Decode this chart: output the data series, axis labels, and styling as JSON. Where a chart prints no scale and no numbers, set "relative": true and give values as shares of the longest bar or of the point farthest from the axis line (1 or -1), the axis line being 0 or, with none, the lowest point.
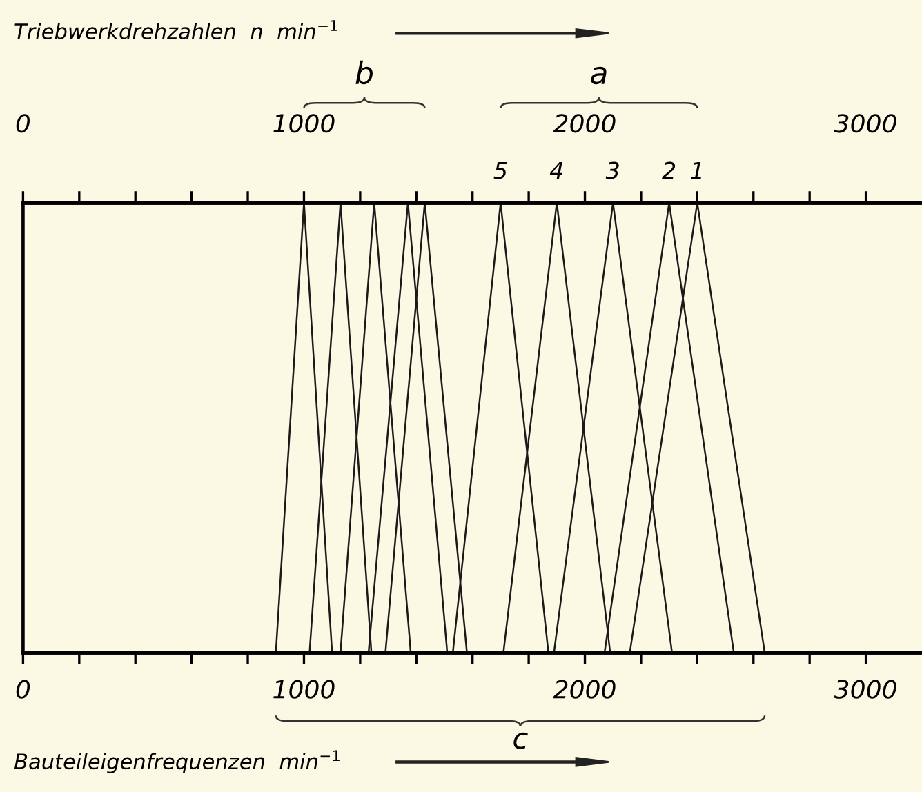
{
  "chart_data": {
    "type": "line",
    "relative": true,
    "xlabel": "Bauteileigenfrequenzen  min$^{−1}$",
    "x2label": "Triebwerkdrehzahlen  n  min$^{−1}$",
    "xlim": [
      0,
      3200
    ],
    "xticks": [
      0,
      {
        "value": 200,
        "label": null
      },
      {
        "value": 400,
        "label": null
      },
      {
        "value": 600,
        "label": null
      },
      {
        "value": 800,
        "label": null
      },
      1000,
      {
        "value": 1200,
        "label": null
      },
      {
        "value": 1400,
        "label": null
      },
      {
        "value": 1600,
        "label": null
      },
      {
        "value": 1800,
        "label": null
      },
      2000,
      {
        "value": 2200,
        "label": null
      },
      {
        "value": 2400,
        "label": null
      },
      {
        "value": 2600,
        "label": null
      },
      {
        "value": 2800,
        "label": null
      },
      3000
    ],
    "x2lim": [
      0,
      3200
    ],
    "x2ticks": [
      0,
      {
        "value": 200,
        "label": null
      },
      {
        "value": 400,
        "label": null
      },
      {
        "value": 600,
        "label": null
      },
      {
        "value": 800,
        "label": null
      },
      1000,
      {
        "value": 1200,
        "label": null
      },
      {
        "value": 1400,
        "label": null
      },
      {
        "value": 1600,
        "label": null
      },
      {
        "value": 1800,
        "label": null
      },
      2000,
      {
        "value": 2200,
        "label": null
      },
      {
        "value": 2400,
        "label": null
      },
      {
        "value": 2600,
        "label": null
      },
      {
        "value": 2800,
        "label": null
      },
      3000
    ],
    "grid": false,
    "legend": false,
    "marker": "none",
    "line_style": "solid",
    "series": [
      {
        "color": "#1a1a1a",
        "x": [
          900,
          1000,
          1100
        ],
        "values": [
          0,
          1,
          0
        ]
      },
      {
        "color": "#1a1a1a",
        "x": [
          1020,
          1130,
          1240
        ],
        "values": [
          0,
          1,
          0
        ]
      },
      {
        "color": "#1a1a1a",
        "x": [
          1130,
          1250,
          1380
        ],
        "values": [
          0,
          1,
          0
        ]
      },
      {
        "color": "#1a1a1a",
        "x": [
          1230,
          1370,
          1510
        ],
        "values": [
          0,
          1,
          0
        ]
      },
      {
        "color": "#1a1a1a",
        "x": [
          1290,
          1430,
          1580
        ],
        "values": [
          0,
          1,
          0
        ]
      },
      {
        "color": "#1a1a1a",
        "x": [
          1530,
          1700,
          1870
        ],
        "values": [
          0,
          1,
          0
        ]
      },
      {
        "color": "#1a1a1a",
        "x": [
          1710,
          1900,
          2090
        ],
        "values": [
          0,
          1,
          0
        ]
      },
      {
        "color": "#1a1a1a",
        "x": [
          1890,
          2100,
          2310
        ],
        "values": [
          0,
          1,
          0
        ]
      },
      {
        "color": "#1a1a1a",
        "x": [
          2070,
          2300,
          2530
        ],
        "values": [
          0,
          1,
          0
        ]
      },
      {
        "color": "#1a1a1a",
        "x": [
          2160,
          2400,
          2640
        ],
        "values": [
          0,
          1,
          0
        ]
      }
    ],
    "annotations": [
      {
        "text": "5",
        "x": 1700,
        "y": 1
      },
      {
        "text": "4",
        "x": 1900,
        "y": 1
      },
      {
        "text": "3",
        "x": 2100,
        "y": 1
      },
      {
        "text": "2",
        "x": 2300,
        "y": 1
      },
      {
        "text": "1",
        "x": 2400,
        "y": 1
      },
      "b",
      "a",
      "c"
    ]
  }
}
